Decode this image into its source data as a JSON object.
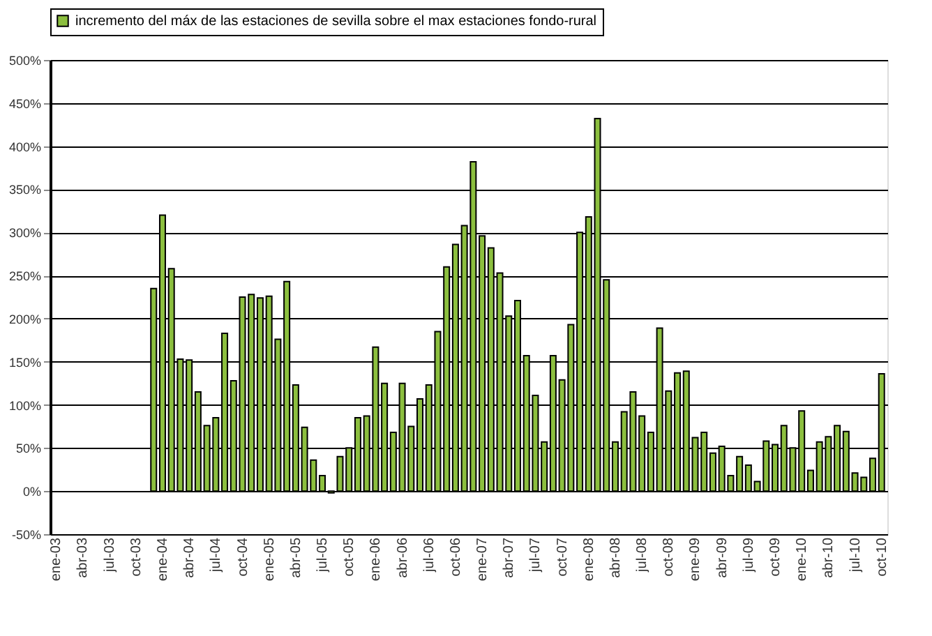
{
  "chart_data": {
    "type": "bar",
    "categories": [
      "ene-03",
      null,
      null,
      "abr-03",
      null,
      null,
      "jul-03",
      null,
      null,
      "oct-03",
      null,
      null,
      "ene-04",
      null,
      null,
      "abr-04",
      null,
      null,
      "jul-04",
      null,
      null,
      "oct-04",
      null,
      null,
      "ene-05",
      null,
      null,
      "abr-05",
      null,
      null,
      "jul-05",
      null,
      null,
      "oct-05",
      null,
      null,
      "ene-06",
      null,
      null,
      "abr-06",
      null,
      null,
      "jul-06",
      null,
      null,
      "oct-06",
      null,
      null,
      "ene-07",
      null,
      null,
      "abr-07",
      null,
      null,
      "jul-07",
      null,
      null,
      "oct-07",
      null,
      null,
      "ene-08",
      null,
      null,
      "abr-08",
      null,
      null,
      "jul-08",
      null,
      null,
      "oct-08",
      null,
      null,
      "ene-09",
      null,
      null,
      "abr-09",
      null,
      null,
      "jul-09",
      null,
      null,
      "oct-09",
      null,
      null,
      "ene-10",
      null,
      null,
      "abr-10",
      null,
      null,
      "jul-10",
      null,
      null,
      "oct-10"
    ],
    "series": [
      {
        "name": "incremento del máx de las estaciones de sevilla sobre el max estaciones fondo-rural",
        "color": "#8cbf3f",
        "values": [
          null,
          null,
          null,
          null,
          null,
          null,
          null,
          null,
          null,
          null,
          null,
          235,
          320,
          258,
          153,
          152,
          115,
          76,
          85,
          183,
          128,
          225,
          228,
          224,
          226,
          176,
          243,
          123,
          74,
          36,
          18,
          -2,
          40,
          50,
          85,
          87,
          167,
          125,
          68,
          125,
          75,
          107,
          123,
          185,
          260,
          286,
          308,
          382,
          296,
          282,
          253,
          203,
          221,
          157,
          111,
          57,
          157,
          129,
          193,
          300,
          318,
          432,
          245,
          57,
          92,
          115,
          87,
          68,
          189,
          116,
          137,
          139,
          62,
          68,
          44,
          52,
          18,
          40,
          30,
          11,
          58,
          54,
          76,
          50,
          93,
          24,
          57,
          63,
          76,
          69,
          21,
          16,
          38,
          136
        ]
      }
    ],
    "ylim": [
      -50,
      500
    ],
    "yticks": [
      {
        "value": -50,
        "label": "-50%"
      },
      {
        "value": 0,
        "label": "0%"
      },
      {
        "value": 50,
        "label": "50%"
      },
      {
        "value": 100,
        "label": "100%"
      },
      {
        "value": 150,
        "label": "150%"
      },
      {
        "value": 200,
        "label": "200%"
      },
      {
        "value": 250,
        "label": "250%"
      },
      {
        "value": 300,
        "label": "300%"
      },
      {
        "value": 350,
        "label": "350%"
      },
      {
        "value": 400,
        "label": "400%"
      },
      {
        "value": 450,
        "label": "450%"
      },
      {
        "value": 500,
        "label": "500%"
      }
    ],
    "grid": "y",
    "legend": "top"
  }
}
